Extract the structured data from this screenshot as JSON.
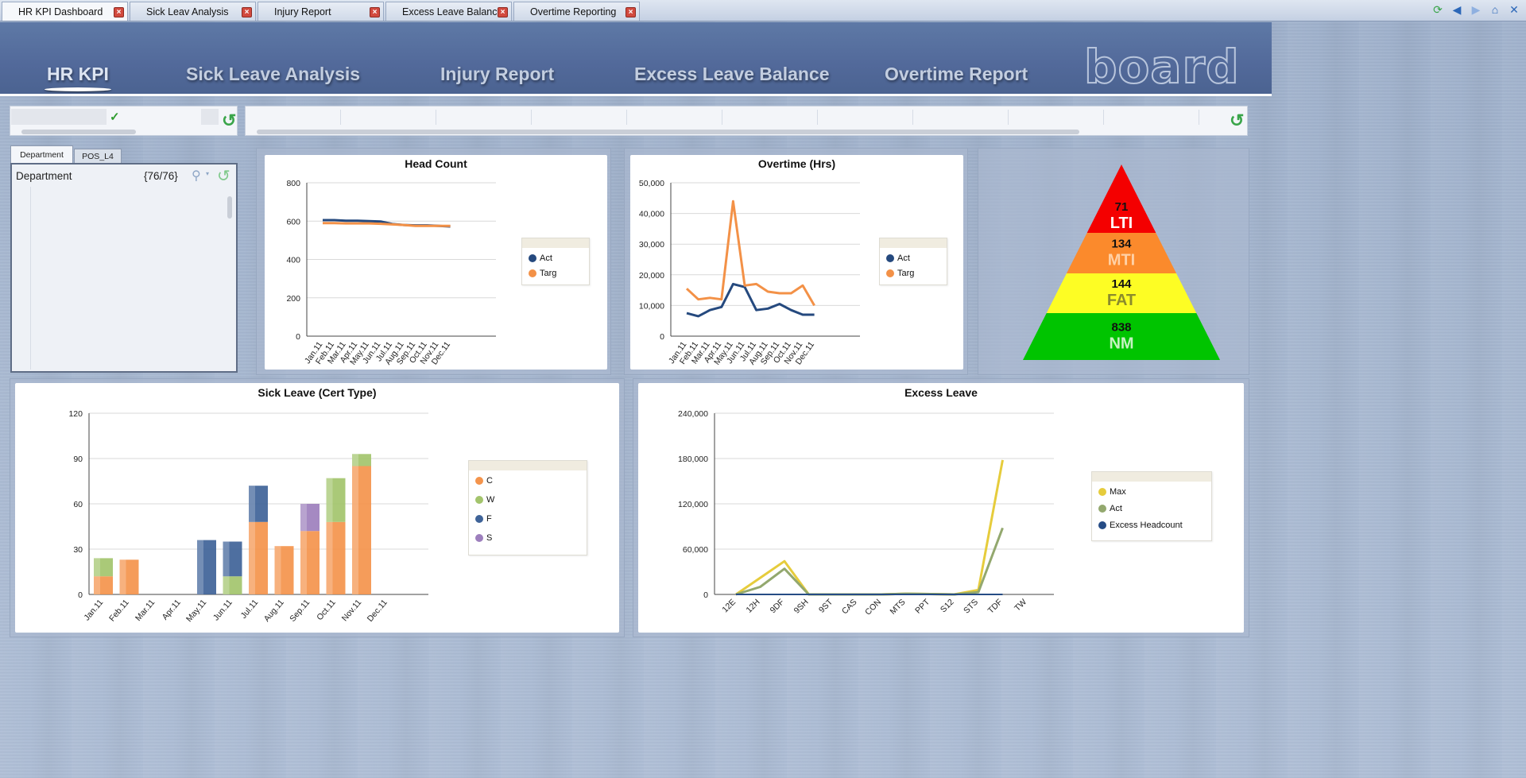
{
  "tabs": [
    {
      "label": "HR KPI Dashboard",
      "active": true
    },
    {
      "label": "Sick Leav Analysis",
      "active": false
    },
    {
      "label": "Injury Report",
      "active": false
    },
    {
      "label": "Excess Leave Balance",
      "active": false
    },
    {
      "label": "Overtime Reporting",
      "active": false
    }
  ],
  "window_icons": [
    "refresh-icon",
    "back-icon",
    "forward-icon",
    "home-icon",
    "close-window-icon"
  ],
  "nav": [
    {
      "label": "HR KPI",
      "active": true
    },
    {
      "label": "Sick Leave Analysis",
      "active": false
    },
    {
      "label": "Injury Report",
      "active": false
    },
    {
      "label": "Excess Leave Balance",
      "active": false
    },
    {
      "label": "Overtime Report",
      "active": false
    }
  ],
  "logo_text": "board",
  "filter": {
    "tabs": [
      "Department",
      "POS_L4"
    ],
    "field_label": "Department",
    "count": "{76/76}"
  },
  "colors": {
    "act": "#25497e",
    "targ": "#f39147",
    "c": "#f4944c",
    "w": "#a3c46c",
    "f": "#3f6398",
    "s": "#9d7fbd",
    "max": "#e6cc3c",
    "act_green": "#93a86e",
    "excess": "#264c85",
    "lti": "#f40000",
    "mti": "#fb8a2c",
    "fat": "#fdfd24",
    "nm": "#00c400"
  },
  "pyramid": [
    {
      "value": "71",
      "label": "LTI",
      "label_color": "#ffffff"
    },
    {
      "value": "134",
      "label": "MTI",
      "label_color": "#ffd1a6"
    },
    {
      "value": "144",
      "label": "FAT",
      "label_color": "#8b8b2c"
    },
    {
      "value": "838",
      "label": "NM",
      "label_color": "#c7f2c2"
    }
  ],
  "chart_data": [
    {
      "type": "line",
      "title": "Head Count",
      "categories": [
        "Jan.11",
        "Feb.11",
        "Mar.11",
        "Apr.11",
        "May.11",
        "Jun.11",
        "Jul.11",
        "Aug.11",
        "Sep.11",
        "Oct.11",
        "Nov.11",
        "Dec.11"
      ],
      "series": [
        {
          "name": "Act",
          "values": [
            605,
            605,
            602,
            602,
            600,
            598,
            585,
            580,
            578,
            578,
            575,
            572
          ]
        },
        {
          "name": "Targ",
          "values": [
            590,
            590,
            588,
            588,
            588,
            586,
            583,
            580,
            575,
            575,
            575,
            575
          ]
        }
      ],
      "ylim": [
        0,
        800
      ],
      "yticks": [
        0,
        200,
        400,
        600,
        800
      ],
      "grid": true,
      "legend": "right"
    },
    {
      "type": "line",
      "title": "Overtime (Hrs)",
      "categories": [
        "Jan.11",
        "Feb.11",
        "Mar.11",
        "Apr.11",
        "May.11",
        "Jun.11",
        "Jul.11",
        "Aug.11",
        "Sep.11",
        "Oct.11",
        "Nov.11",
        "Dec.11"
      ],
      "series": [
        {
          "name": "Act",
          "values": [
            7500,
            6500,
            8500,
            9500,
            17000,
            16000,
            8500,
            9000,
            10500,
            8500,
            7000,
            7000
          ]
        },
        {
          "name": "Targ",
          "values": [
            15500,
            12000,
            12500,
            12000,
            44000,
            16500,
            17000,
            14500,
            14000,
            14000,
            16500,
            10000
          ]
        }
      ],
      "ylim": [
        0,
        50000
      ],
      "yticks": [
        "0",
        "10,000",
        "20,000",
        "30,000",
        "40,000",
        "50,000"
      ],
      "grid": true,
      "legend": "right"
    },
    {
      "type": "bar",
      "stacked": true,
      "title": "Sick Leave (Cert Type)",
      "categories": [
        "Jan.11",
        "Feb.11",
        "Mar.11",
        "Apr.11",
        "May.11",
        "Jun.11",
        "Jul.11",
        "Aug.11",
        "Sep.11",
        "Oct.11",
        "Nov.11",
        "Dec.11"
      ],
      "series": [
        {
          "name": "C",
          "values": [
            12,
            23,
            0,
            0,
            0,
            0,
            48,
            32,
            42,
            48,
            85,
            0
          ]
        },
        {
          "name": "W",
          "values": [
            12,
            0,
            0,
            0,
            0,
            12,
            0,
            0,
            0,
            29,
            8,
            0
          ]
        },
        {
          "name": "F",
          "values": [
            0,
            0,
            0,
            0,
            36,
            23,
            24,
            0,
            0,
            0,
            0,
            0
          ]
        },
        {
          "name": "S",
          "values": [
            0,
            0,
            0,
            0,
            0,
            0,
            0,
            0,
            18,
            0,
            0,
            0
          ]
        }
      ],
      "ylim": [
        0,
        120
      ],
      "yticks": [
        0,
        30,
        60,
        90,
        120
      ],
      "grid": true,
      "legend": "right"
    },
    {
      "type": "line",
      "title": "Excess Leave",
      "categories": [
        "12E",
        "12H",
        "9DF",
        "9SH",
        "9ST",
        "CAS",
        "CON",
        "MTS",
        "PPT",
        "S12",
        "STS",
        "TDF",
        "TW"
      ],
      "series": [
        {
          "name": "Max",
          "values": [
            0,
            22000,
            44000,
            0,
            0,
            0,
            0,
            1000,
            500,
            0,
            6000,
            178000,
            null
          ]
        },
        {
          "name": "Act",
          "values": [
            0,
            10000,
            34000,
            0,
            0,
            0,
            0,
            1000,
            500,
            0,
            3000,
            88000,
            null
          ]
        },
        {
          "name": "Excess Headcount",
          "values": [
            0,
            0,
            0,
            0,
            0,
            0,
            0,
            0,
            0,
            0,
            0,
            0,
            null
          ]
        }
      ],
      "ylim": [
        0,
        240000
      ],
      "yticks": [
        "0",
        "60,000",
        "120,000",
        "180,000",
        "240,000"
      ],
      "grid": true,
      "legend": "right"
    }
  ]
}
